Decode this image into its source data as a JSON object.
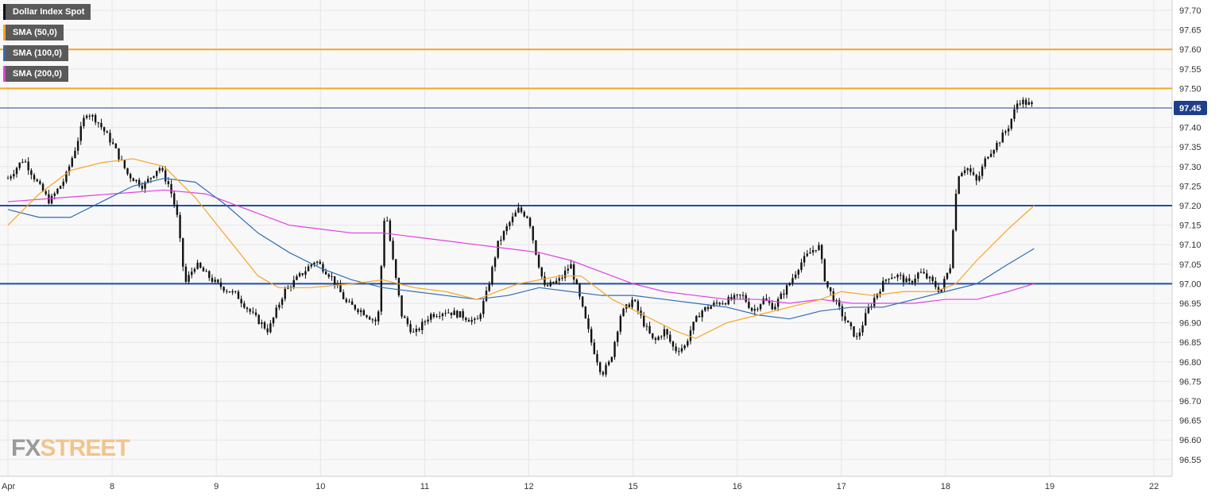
{
  "chart_data": {
    "type": "candlestick",
    "series": [
      {
        "name": "Dollar Index Spot",
        "color": "#111111"
      },
      {
        "name": "SMA (50,0)",
        "color": "#f5a623"
      },
      {
        "name": "SMA (100,0)",
        "color": "#2f6db5"
      },
      {
        "name": "SMA (200,0)",
        "color": "#e040e0"
      }
    ],
    "x_ticks": [
      "Apr",
      "8",
      "9",
      "10",
      "11",
      "12",
      "15",
      "16",
      "17",
      "18",
      "19",
      "22"
    ],
    "y_ticks": [
      "97.70",
      "97.65",
      "97.60",
      "97.55",
      "97.50",
      "97.45",
      "97.40",
      "97.35",
      "97.30",
      "97.25",
      "97.20",
      "97.15",
      "97.10",
      "97.05",
      "97.00",
      "96.95",
      "96.90",
      "96.85",
      "96.80",
      "96.75",
      "96.70",
      "96.65",
      "96.60",
      "96.55"
    ],
    "ylim": [
      96.51,
      97.72
    ],
    "last_price": "97.45",
    "last_price_value": 97.45,
    "resistance_levels": [
      97.6,
      97.5
    ],
    "support_levels": [
      97.2,
      97.0
    ],
    "price_path": [
      [
        0,
        97.27
      ],
      [
        0.15,
        97.32
      ],
      [
        0.3,
        97.25
      ],
      [
        0.4,
        97.21
      ],
      [
        0.55,
        97.27
      ],
      [
        0.65,
        97.35
      ],
      [
        0.75,
        97.44
      ],
      [
        0.85,
        97.42
      ],
      [
        1.0,
        97.36
      ],
      [
        1.15,
        97.28
      ],
      [
        1.3,
        97.25
      ],
      [
        1.45,
        97.3
      ],
      [
        1.55,
        97.25
      ],
      [
        1.62,
        97.18
      ],
      [
        1.7,
        97.0
      ],
      [
        1.8,
        97.05
      ],
      [
        2.0,
        97.0
      ],
      [
        2.2,
        96.97
      ],
      [
        2.35,
        96.92
      ],
      [
        2.5,
        96.88
      ],
      [
        2.65,
        96.98
      ],
      [
        2.8,
        97.02
      ],
      [
        2.95,
        97.06
      ],
      [
        3.1,
        97.02
      ],
      [
        3.25,
        96.95
      ],
      [
        3.4,
        96.93
      ],
      [
        3.55,
        96.9
      ],
      [
        3.62,
        97.2
      ],
      [
        3.7,
        97.05
      ],
      [
        3.78,
        96.92
      ],
      [
        3.9,
        96.87
      ],
      [
        4.05,
        96.92
      ],
      [
        4.2,
        96.93
      ],
      [
        4.35,
        96.92
      ],
      [
        4.5,
        96.9
      ],
      [
        4.6,
        96.98
      ],
      [
        4.7,
        97.1
      ],
      [
        4.8,
        97.15
      ],
      [
        4.9,
        97.19
      ],
      [
        5.0,
        97.17
      ],
      [
        5.05,
        97.1
      ],
      [
        5.15,
        96.99
      ],
      [
        5.3,
        97.01
      ],
      [
        5.4,
        97.05
      ],
      [
        5.5,
        96.95
      ],
      [
        5.6,
        96.85
      ],
      [
        5.7,
        96.77
      ],
      [
        5.78,
        96.8
      ],
      [
        5.88,
        96.92
      ],
      [
        6.0,
        96.96
      ],
      [
        6.1,
        96.9
      ],
      [
        6.2,
        96.85
      ],
      [
        6.3,
        96.88
      ],
      [
        6.4,
        96.83
      ],
      [
        6.5,
        96.84
      ],
      [
        6.55,
        96.88
      ],
      [
        6.65,
        96.93
      ],
      [
        6.8,
        96.95
      ],
      [
        6.95,
        96.96
      ],
      [
        7.05,
        96.97
      ],
      [
        7.15,
        96.93
      ],
      [
        7.25,
        96.96
      ],
      [
        7.35,
        96.94
      ],
      [
        7.5,
        97.0
      ],
      [
        7.6,
        97.05
      ],
      [
        7.7,
        97.08
      ],
      [
        7.78,
        97.1
      ],
      [
        7.85,
        97.0
      ],
      [
        7.95,
        96.95
      ],
      [
        8.05,
        96.9
      ],
      [
        8.15,
        96.86
      ],
      [
        8.25,
        96.93
      ],
      [
        8.35,
        96.98
      ],
      [
        8.45,
        97.02
      ],
      [
        8.55,
        97.02
      ],
      [
        8.65,
        97.0
      ],
      [
        8.75,
        97.03
      ],
      [
        8.85,
        97.01
      ],
      [
        8.95,
        96.98
      ],
      [
        9.05,
        97.05
      ],
      [
        9.08,
        97.18
      ],
      [
        9.12,
        97.28
      ],
      [
        9.2,
        97.3
      ],
      [
        9.3,
        97.26
      ],
      [
        9.4,
        97.33
      ],
      [
        9.5,
        97.36
      ],
      [
        9.6,
        97.4
      ],
      [
        9.7,
        97.47
      ],
      [
        9.8,
        97.46
      ],
      [
        9.85,
        97.45
      ]
    ],
    "sma50": [
      [
        0,
        97.15
      ],
      [
        0.3,
        97.23
      ],
      [
        0.6,
        97.29
      ],
      [
        0.9,
        97.31
      ],
      [
        1.2,
        97.32
      ],
      [
        1.5,
        97.3
      ],
      [
        1.8,
        97.22
      ],
      [
        2.1,
        97.12
      ],
      [
        2.4,
        97.02
      ],
      [
        2.6,
        96.99
      ],
      [
        2.9,
        96.99
      ],
      [
        3.3,
        97.0
      ],
      [
        3.6,
        97.01
      ],
      [
        3.9,
        96.99
      ],
      [
        4.2,
        96.98
      ],
      [
        4.5,
        96.96
      ],
      [
        4.7,
        96.98
      ],
      [
        4.9,
        97.0
      ],
      [
        5.1,
        97.01
      ],
      [
        5.3,
        97.02
      ],
      [
        5.5,
        97.02
      ],
      [
        5.8,
        96.96
      ],
      [
        6.1,
        96.92
      ],
      [
        6.4,
        96.88
      ],
      [
        6.6,
        96.86
      ],
      [
        6.9,
        96.9
      ],
      [
        7.2,
        96.92
      ],
      [
        7.5,
        96.94
      ],
      [
        7.8,
        96.96
      ],
      [
        8.0,
        96.98
      ],
      [
        8.3,
        96.97
      ],
      [
        8.6,
        96.98
      ],
      [
        8.9,
        96.98
      ],
      [
        9.1,
        97.0
      ],
      [
        9.3,
        97.06
      ],
      [
        9.6,
        97.14
      ],
      [
        9.85,
        97.2
      ]
    ],
    "sma100": [
      [
        0,
        97.19
      ],
      [
        0.3,
        97.17
      ],
      [
        0.6,
        97.17
      ],
      [
        0.9,
        97.21
      ],
      [
        1.2,
        97.25
      ],
      [
        1.5,
        97.27
      ],
      [
        1.8,
        97.26
      ],
      [
        2.1,
        97.2
      ],
      [
        2.4,
        97.13
      ],
      [
        2.7,
        97.08
      ],
      [
        3.0,
        97.04
      ],
      [
        3.3,
        97.01
      ],
      [
        3.6,
        96.99
      ],
      [
        3.9,
        96.98
      ],
      [
        4.2,
        96.97
      ],
      [
        4.5,
        96.96
      ],
      [
        4.8,
        96.97
      ],
      [
        5.1,
        96.99
      ],
      [
        5.4,
        96.98
      ],
      [
        5.7,
        96.97
      ],
      [
        6.0,
        96.97
      ],
      [
        6.3,
        96.96
      ],
      [
        6.6,
        96.95
      ],
      [
        6.9,
        96.94
      ],
      [
        7.2,
        96.92
      ],
      [
        7.5,
        96.91
      ],
      [
        7.8,
        96.93
      ],
      [
        8.1,
        96.94
      ],
      [
        8.4,
        96.94
      ],
      [
        8.7,
        96.96
      ],
      [
        9.0,
        96.98
      ],
      [
        9.3,
        97.0
      ],
      [
        9.6,
        97.05
      ],
      [
        9.85,
        97.09
      ]
    ],
    "sma200": [
      [
        0,
        97.21
      ],
      [
        0.5,
        97.22
      ],
      [
        1.0,
        97.23
      ],
      [
        1.5,
        97.24
      ],
      [
        1.9,
        97.23
      ],
      [
        2.3,
        97.19
      ],
      [
        2.7,
        97.15
      ],
      [
        3.0,
        97.14
      ],
      [
        3.3,
        97.13
      ],
      [
        3.6,
        97.13
      ],
      [
        3.9,
        97.12
      ],
      [
        4.2,
        97.11
      ],
      [
        4.5,
        97.1
      ],
      [
        4.8,
        97.09
      ],
      [
        5.1,
        97.08
      ],
      [
        5.4,
        97.06
      ],
      [
        5.7,
        97.03
      ],
      [
        6.0,
        97.0
      ],
      [
        6.3,
        96.98
      ],
      [
        6.6,
        96.97
      ],
      [
        6.9,
        96.96
      ],
      [
        7.2,
        96.96
      ],
      [
        7.5,
        96.95
      ],
      [
        7.8,
        96.96
      ],
      [
        8.1,
        96.95
      ],
      [
        8.4,
        96.95
      ],
      [
        8.7,
        96.95
      ],
      [
        9.0,
        96.96
      ],
      [
        9.3,
        96.96
      ],
      [
        9.6,
        96.98
      ],
      [
        9.85,
        97.0
      ]
    ]
  },
  "legend": {
    "items": [
      {
        "label": "Dollar Index Spot",
        "color": "#111111"
      },
      {
        "label": "SMA (50,0)",
        "color": "#f5a623"
      },
      {
        "label": "SMA (100,0)",
        "color": "#2f6db5"
      },
      {
        "label": "SMA (200,0)",
        "color": "#e040e0"
      }
    ]
  },
  "watermark": {
    "part1": "FX",
    "part2": "STREET"
  },
  "colors": {
    "background": "#f8f8f9",
    "grid": "#e6e6ea",
    "resistance": "#f5a623",
    "support": "#1f4fa0",
    "price_line": "#1f3f8a",
    "price_label_bg": "#1f3f8a",
    "candle": "#111111"
  }
}
